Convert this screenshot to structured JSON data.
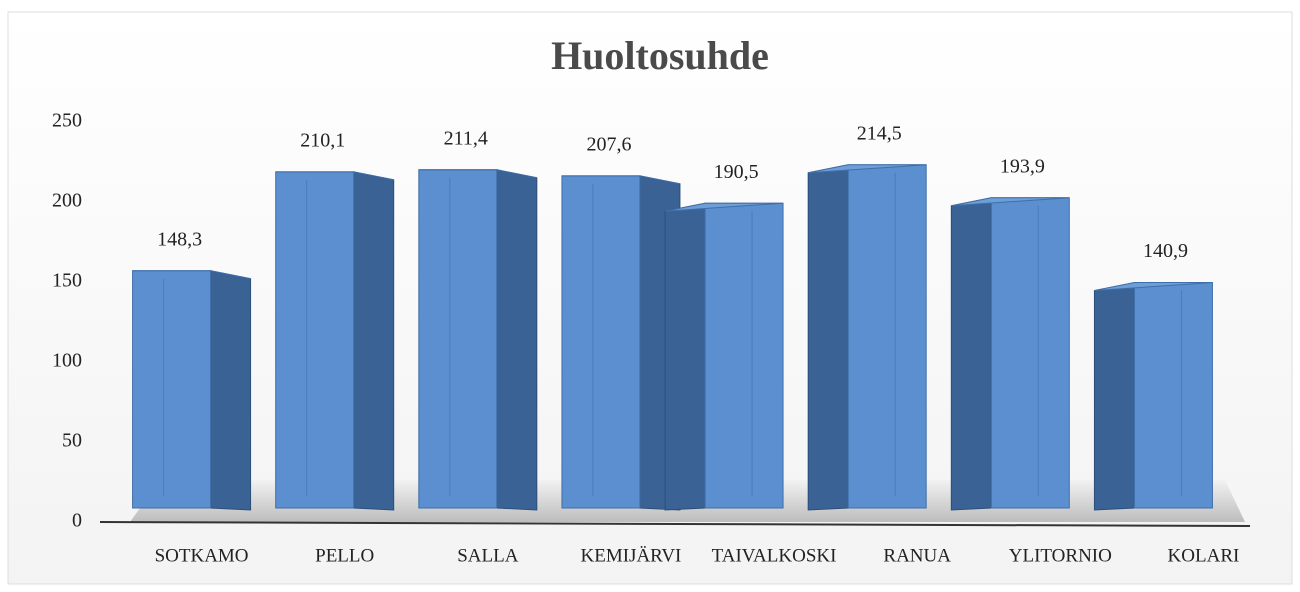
{
  "chart_data": {
    "type": "bar",
    "title": "Huoltosuhde",
    "categories": [
      "SOTKAMO",
      "PELLO",
      "SALLA",
      "KEMIJÄRVI",
      "TAIVALKOSKI",
      "RANUA",
      "YLITORNIO",
      "KOLARI"
    ],
    "values": [
      148.3,
      210.1,
      211.4,
      207.6,
      190.5,
      214.5,
      193.9,
      140.9
    ],
    "value_labels": [
      "148,3",
      "210,1",
      "211,4",
      "207,6",
      "190,5",
      "214,5",
      "193,9",
      "140,9"
    ],
    "color": "#5b8fd0",
    "ylim": [
      0,
      250
    ],
    "yticks": [
      0,
      50,
      100,
      150,
      200,
      250
    ],
    "grid": false
  }
}
